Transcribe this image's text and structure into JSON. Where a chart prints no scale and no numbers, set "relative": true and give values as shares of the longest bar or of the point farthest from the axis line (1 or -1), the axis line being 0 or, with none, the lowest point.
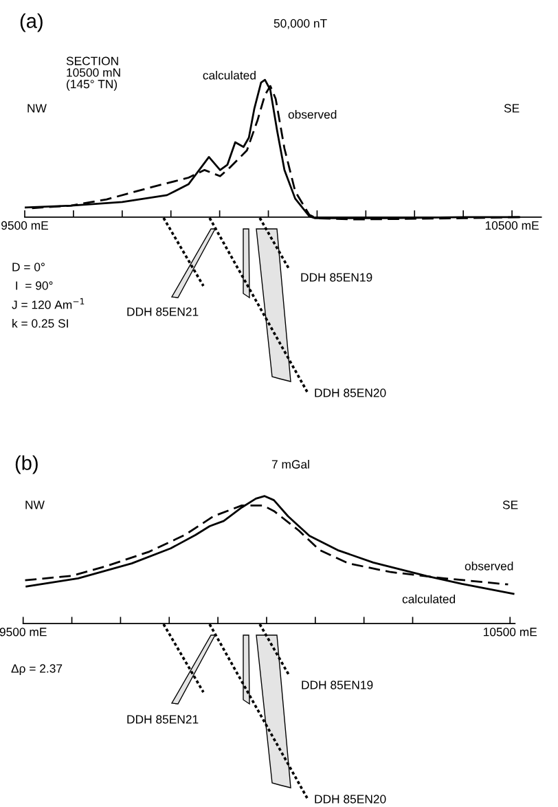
{
  "chart_data": [
    {
      "type": "line",
      "title": "(a)",
      "series": [
        {
          "name": "calculated",
          "color": "#000000",
          "line_style": "solid",
          "x": [
            9500,
            9595,
            9700,
            9792,
            9836,
            9858,
            9878,
            9901,
            9916,
            9932,
            9949,
            9960,
            9971,
            9985,
            9993,
            10004,
            10018,
            10033,
            10055,
            10084,
            10096,
            10250,
            10400,
            10515
          ],
          "values": [
            0.07,
            0.084,
            0.11,
            0.16,
            0.239,
            0.343,
            0.438,
            0.343,
            0.382,
            0.545,
            0.511,
            0.579,
            0.787,
            0.98,
            1,
            0.927,
            0.629,
            0.343,
            0.135,
            0.006,
            -0.008,
            -0.008,
            0,
            0
          ]
        },
        {
          "name": "observed",
          "color": "#000000",
          "line_style": "dashed",
          "x": [
            9515,
            9595,
            9668,
            9755,
            9836,
            9869,
            9901,
            9923,
            9956,
            9978,
            9993,
            10004,
            10015,
            10033,
            10055,
            10084,
            10098,
            10180,
            10400,
            10515
          ],
          "values": [
            0.065,
            0.084,
            0.129,
            0.213,
            0.287,
            0.343,
            0.298,
            0.368,
            0.486,
            0.708,
            0.89,
            0.955,
            0.862,
            0.5,
            0.188,
            0.017,
            -0.008,
            -0.017,
            -0.008,
            0
          ]
        }
      ],
      "xlim": [
        9500,
        10560
      ],
      "xticks": [
        {
          "value": 9500,
          "label": "9500 mE"
        },
        {
          "value": 9600,
          "label": null
        },
        {
          "value": 9700,
          "label": null
        },
        {
          "value": 9800,
          "label": null
        },
        {
          "value": 9900,
          "label": null
        },
        {
          "value": 10000,
          "label": null
        },
        {
          "value": 10100,
          "label": null
        },
        {
          "value": 10200,
          "label": null
        },
        {
          "value": 10300,
          "label": null
        },
        {
          "value": 10400,
          "label": null
        },
        {
          "value": 10500,
          "label": "10500 mE"
        }
      ],
      "relative": true,
      "grid": false,
      "legend": false,
      "annotations": [
        "NW",
        "SE",
        "SECTION\n10500 mN\n(145° TN)",
        "D = 0°",
        " I  = 90°",
        "J = 120 Am$^{−1}$",
        "k = 0.25 SI",
        "DDH 85EN21",
        "DDH 85EN19",
        "DDH 85EN20",
        "50,000 nT"
      ]
    },
    {
      "type": "line",
      "title": "(b)",
      "series": [
        {
          "name": "calculated",
          "color": "#000000",
          "line_style": "solid",
          "x": [
            9507,
            9613,
            9723,
            9803,
            9854,
            9883,
            9912,
            9949,
            9978,
            9996,
            10015,
            10044,
            10088,
            10146,
            10219,
            10328,
            10401,
            10507
          ],
          "values": [
            0.291,
            0.355,
            0.472,
            0.59,
            0.695,
            0.764,
            0.805,
            0.911,
            0.98,
            1,
            0.968,
            0.842,
            0.688,
            0.576,
            0.479,
            0.374,
            0.312,
            0.234
          ]
        },
        {
          "name": "observed",
          "color": "#000000",
          "line_style": "dashed",
          "x": [
            9504,
            9599,
            9672,
            9759,
            9832,
            9891,
            9949,
            9993,
            10015,
            10066,
            10109,
            10168,
            10255,
            10365,
            10496
          ],
          "values": [
            0.34,
            0.374,
            0.452,
            0.564,
            0.695,
            0.842,
            0.926,
            0.926,
            0.883,
            0.73,
            0.576,
            0.472,
            0.404,
            0.355,
            0.307
          ]
        }
      ],
      "xlim": [
        9500,
        10510
      ],
      "xticks": [
        {
          "value": 9500,
          "label": "9500 mE"
        },
        {
          "value": 9600,
          "label": null
        },
        {
          "value": 9700,
          "label": null
        },
        {
          "value": 9800,
          "label": null
        },
        {
          "value": 9900,
          "label": null
        },
        {
          "value": 10000,
          "label": null
        },
        {
          "value": 10100,
          "label": null
        },
        {
          "value": 10200,
          "label": null
        },
        {
          "value": 10300,
          "label": null
        },
        {
          "value": 10500,
          "label": "10500 mE"
        }
      ],
      "relative": true,
      "grid": false,
      "legend": false,
      "annotations": [
        "NW",
        "SE",
        "Δρ = 2.37",
        "DDH 85EN21",
        "DDH 85EN19",
        "DDH 85EN20",
        "7 mGal"
      ]
    }
  ]
}
